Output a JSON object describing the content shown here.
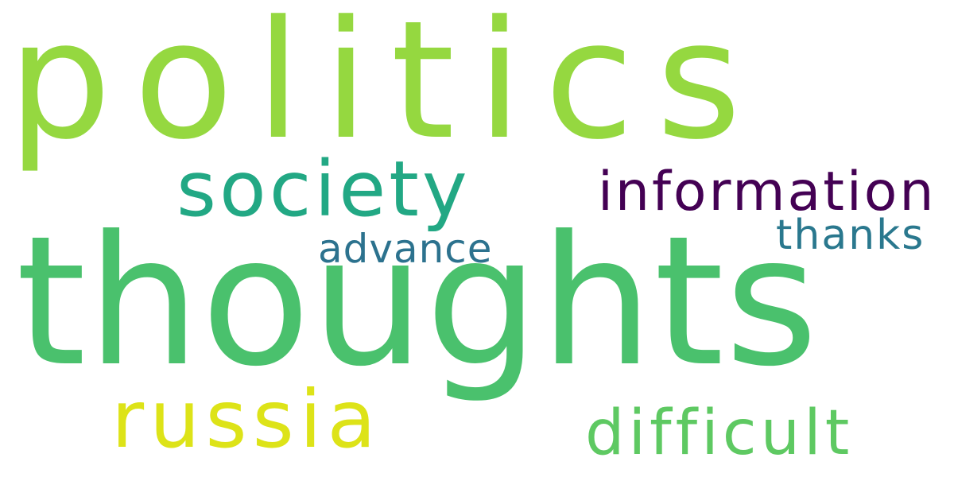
{
  "words": [
    {
      "text": "politics",
      "color": "#95d840"
    },
    {
      "text": "thoughts",
      "color": "#4ac16d"
    },
    {
      "text": "society",
      "color": "#22a884"
    },
    {
      "text": "information",
      "color": "#440154"
    },
    {
      "text": "thanks",
      "color": "#2a788e"
    },
    {
      "text": "advance",
      "color": "#2c728e"
    },
    {
      "text": "russia",
      "color": "#dde318"
    },
    {
      "text": "difficult",
      "color": "#5ec962"
    }
  ]
}
